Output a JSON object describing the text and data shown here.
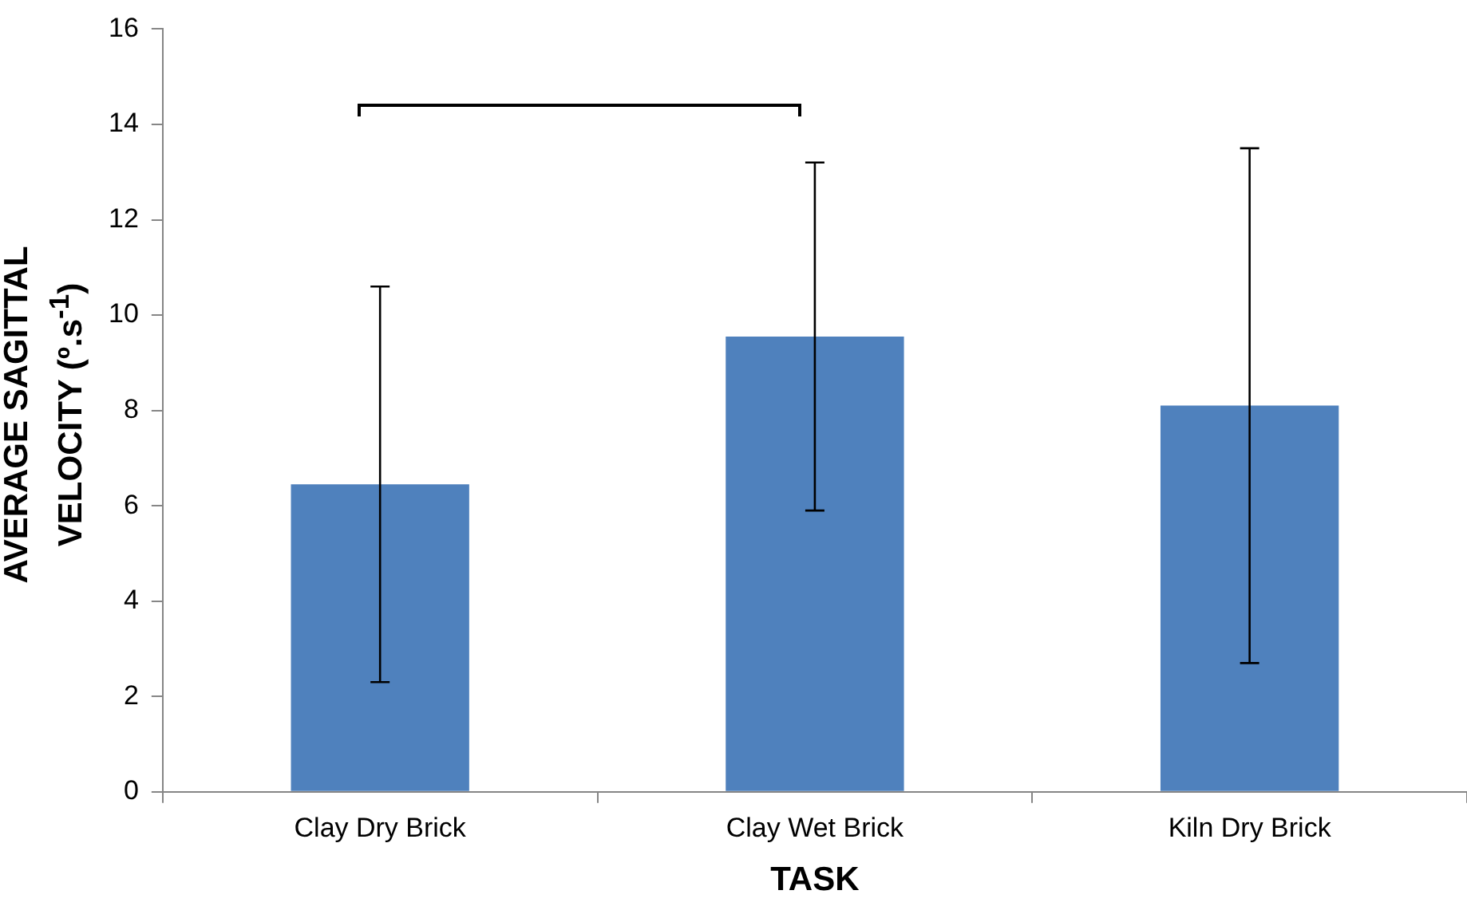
{
  "chart_data": {
    "type": "bar",
    "categories": [
      "Clay Dry Brick",
      "Clay Wet Brick",
      "Kiln Dry Brick"
    ],
    "values": [
      6.45,
      9.55,
      8.1
    ],
    "errors": [
      [
        2.3,
        10.6
      ],
      [
        5.9,
        13.2
      ],
      [
        2.7,
        13.5
      ]
    ],
    "color": "#4f81bd",
    "xlabel": "TASK",
    "ylabel": "AVERAGE SAGITTAL VELOCITY (º.s$^{-1}$)",
    "ylim": [
      0,
      16
    ],
    "yticks": [
      0,
      2,
      4,
      6,
      8,
      10,
      12,
      14,
      16
    ]
  }
}
